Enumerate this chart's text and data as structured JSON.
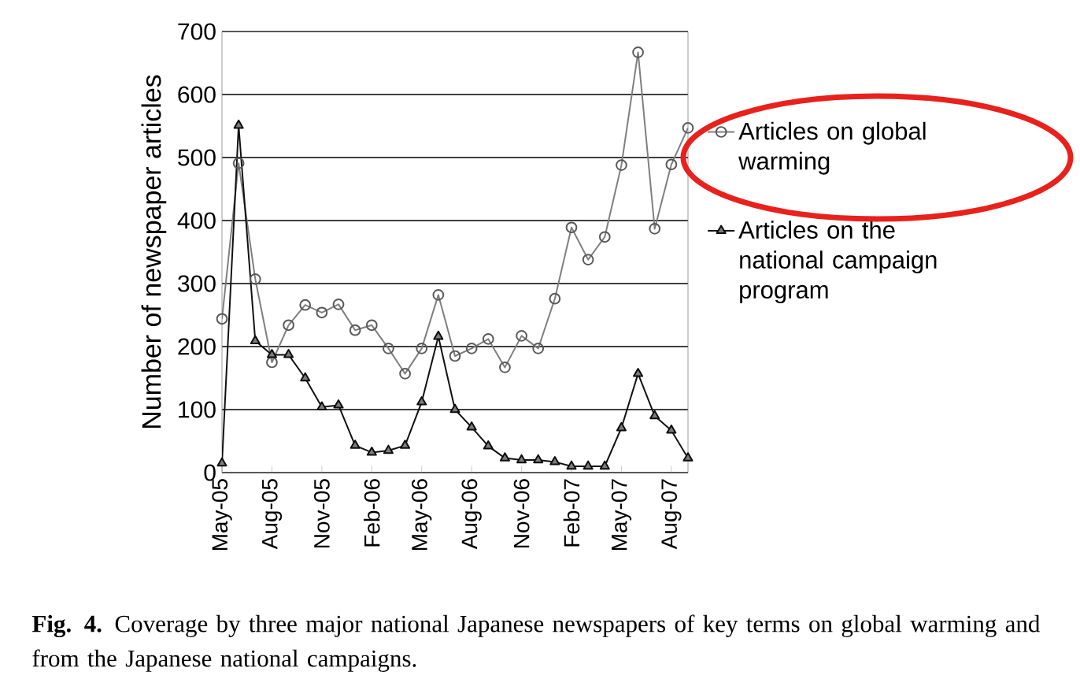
{
  "chart_data": {
    "type": "line",
    "ylabel": "Number of newspaper articles",
    "categories": [
      "May-05",
      null,
      null,
      "Aug-05",
      null,
      null,
      "Nov-05",
      null,
      null,
      "Feb-06",
      null,
      null,
      "May-06",
      null,
      null,
      "Aug-06",
      null,
      null,
      "Nov-06",
      null,
      null,
      "Feb-07",
      null,
      null,
      "May-07",
      null,
      null,
      "Aug-07",
      null
    ],
    "series": [
      {
        "name": "Articles on global warming",
        "color": "#7f7f7f",
        "marker": "circle",
        "values": [
          244,
          491,
          307,
          175,
          234,
          266,
          254,
          267,
          226,
          234,
          197,
          157,
          197,
          282,
          185,
          197,
          212,
          167,
          217,
          197,
          276,
          389,
          338,
          374,
          488,
          667,
          387,
          489,
          547
        ]
      },
      {
        "name": "Articles on the national campaign program",
        "color": "#111111",
        "marker": "triangle",
        "values": [
          15,
          551,
          209,
          187,
          187,
          150,
          104,
          107,
          43,
          32,
          35,
          43,
          112,
          216,
          100,
          72,
          42,
          23,
          20,
          20,
          17,
          10,
          10,
          10,
          71,
          157,
          90,
          67,
          23
        ]
      }
    ],
    "ylim": [
      0,
      700
    ],
    "yticks": [
      0,
      100,
      200,
      300,
      400,
      500,
      600,
      700
    ],
    "grid": "y",
    "legend": "right",
    "line_style": "solid",
    "annotations": [
      "**Fig. 4.** Coverage by three major national Japanese newspapers of key terms on global warming and from the Japanese national campaigns."
    ]
  }
}
